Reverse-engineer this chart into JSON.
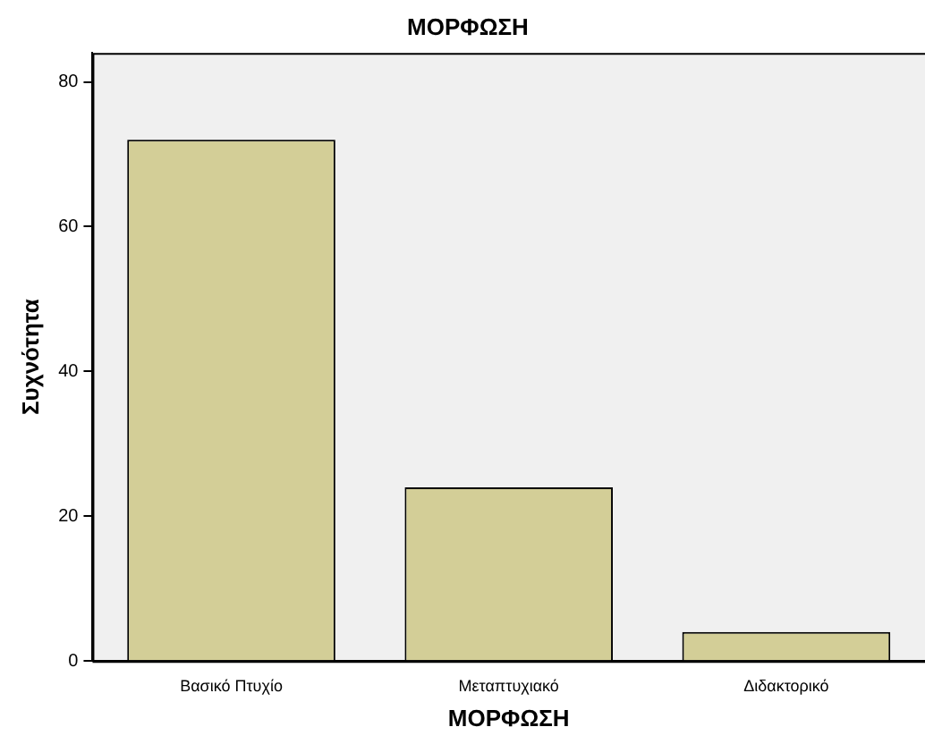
{
  "chart_data": {
    "type": "bar",
    "title": "ΜΟΡΦΩΣΗ",
    "xlabel": "ΜΟΡΦΩΣΗ",
    "ylabel": "Συχνότητα",
    "categories": [
      "Βασικό Πτυχίο",
      "Μεταπτυχιακό",
      "Διδακτορικό"
    ],
    "values": [
      72,
      24,
      4
    ],
    "color": "#d3ce97",
    "ylim": [
      0,
      84
    ],
    "yticks": [
      0,
      20,
      40,
      60,
      80
    ],
    "grid": false,
    "legend": false
  }
}
